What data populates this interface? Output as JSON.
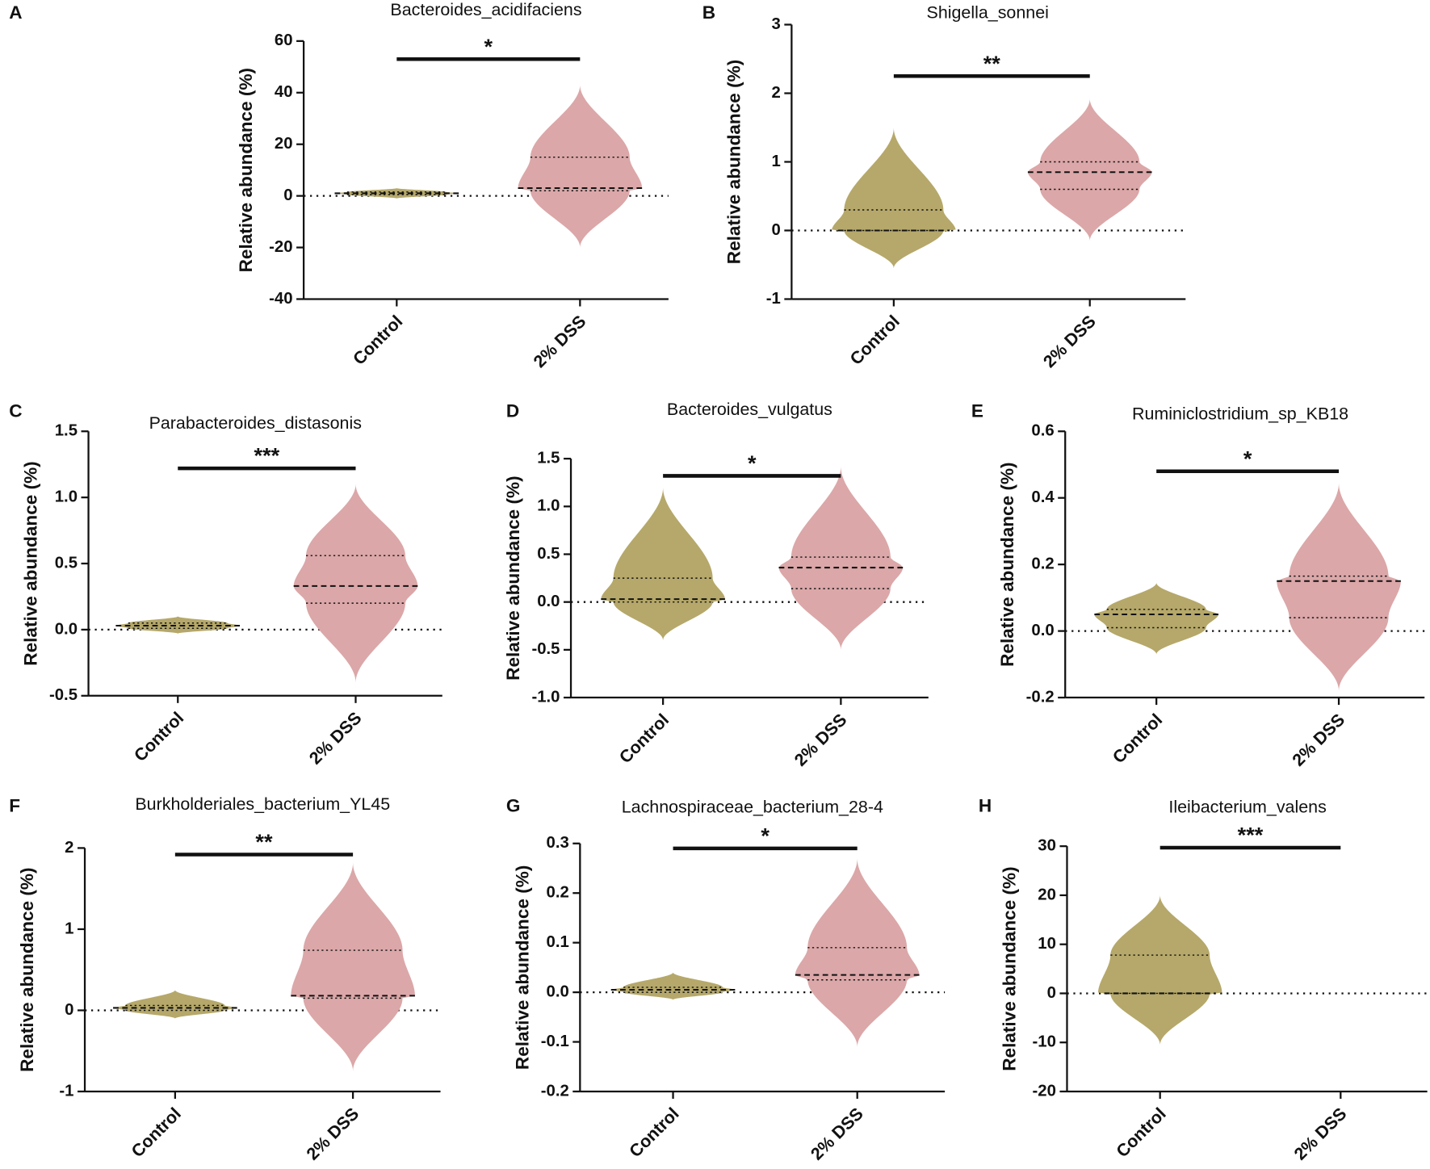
{
  "chart_data": [
    {
      "type": "violin",
      "panel": "A",
      "title": "Bacteroides_acidifaciens",
      "y_label": "Relative abundance (%)",
      "categories": [
        "Control",
        "2% DSS"
      ],
      "violins": [
        {
          "color": "#b5a86a",
          "min": -1,
          "q1": 0.5,
          "median": 1,
          "q3": 1.5,
          "max": 3
        },
        {
          "color": "#dba7a8",
          "min": -20,
          "q1": 2,
          "median": 3,
          "q3": 15,
          "max": 43
        }
      ],
      "ylim": [
        -40,
        60
      ],
      "yticks": [
        -40,
        -20,
        0,
        20,
        40,
        60
      ],
      "reference_line": 0,
      "bracket": {
        "y": 53,
        "label": "*"
      }
    },
    {
      "type": "violin",
      "panel": "B",
      "title": "Shigella_sonnei",
      "y_label": "Relative abundance (%)",
      "categories": [
        "Control",
        "2% DSS"
      ],
      "violins": [
        {
          "color": "#b5a86a",
          "min": -0.55,
          "q1": 0,
          "median": 0,
          "q3": 0.3,
          "max": 1.5
        },
        {
          "color": "#dba7a8",
          "min": -0.15,
          "q1": 0.6,
          "median": 0.85,
          "q3": 1.0,
          "max": 1.92
        }
      ],
      "ylim": [
        -1,
        3
      ],
      "yticks": [
        -1,
        0,
        1,
        2,
        3
      ],
      "reference_line": 0,
      "bracket": {
        "y": 2.25,
        "label": "**"
      }
    },
    {
      "type": "violin",
      "panel": "C",
      "title": "Parabacteroides_distasonis",
      "y_label": "Relative abundance (%)",
      "categories": [
        "Control",
        "2% DSS"
      ],
      "violins": [
        {
          "color": "#b5a86a",
          "min": -0.03,
          "q1": 0.01,
          "median": 0.03,
          "q3": 0.05,
          "max": 0.1
        },
        {
          "color": "#dba7a8",
          "min": -0.4,
          "q1": 0.2,
          "median": 0.33,
          "q3": 0.56,
          "max": 1.1
        }
      ],
      "ylim": [
        -0.5,
        1.5
      ],
      "yticks": [
        -0.5,
        {
          "value": 0,
          "label": "0.0"
        },
        0.5,
        {
          "value": 1,
          "label": "1.0"
        },
        1.5
      ],
      "reference_line": 0,
      "bracket": {
        "y": 1.22,
        "label": "***"
      }
    },
    {
      "type": "violin",
      "panel": "D",
      "title": "Bacteroides_vulgatus",
      "y_label": "Relative abundance (%)",
      "categories": [
        "Control",
        "2% DSS"
      ],
      "violins": [
        {
          "color": "#b5a86a",
          "min": -0.4,
          "q1": 0.0,
          "median": 0.03,
          "q3": 0.25,
          "max": 1.2
        },
        {
          "color": "#dba7a8",
          "min": -0.5,
          "q1": 0.14,
          "median": 0.36,
          "q3": 0.47,
          "max": 1.42
        }
      ],
      "ylim": [
        -1,
        1.5
      ],
      "yticks": [
        {
          "value": -1,
          "label": "-1.0"
        },
        -0.5,
        {
          "value": 0,
          "label": "0.0"
        },
        0.5,
        {
          "value": 1,
          "label": "1.0"
        },
        1.5
      ],
      "reference_line": 0,
      "bracket": {
        "y": 1.32,
        "label": "*"
      }
    },
    {
      "type": "violin",
      "panel": "E",
      "title": "Ruminiclostridium_sp_KB18",
      "y_label": "Relative abundance (%)",
      "categories": [
        "Control",
        "2% DSS"
      ],
      "violins": [
        {
          "color": "#b5a86a",
          "min": -0.07,
          "q1": 0.01,
          "median": 0.05,
          "q3": 0.065,
          "max": 0.145
        },
        {
          "color": "#dba7a8",
          "min": -0.18,
          "q1": 0.04,
          "median": 0.15,
          "q3": 0.165,
          "max": 0.445
        }
      ],
      "ylim": [
        -0.2,
        0.6
      ],
      "yticks": [
        -0.2,
        {
          "value": 0,
          "label": "0.0"
        },
        0.2,
        0.4,
        0.6
      ],
      "reference_line": 0,
      "bracket": {
        "y": 0.48,
        "label": "*"
      }
    },
    {
      "type": "violin",
      "panel": "F",
      "title": "Burkholderiales_bacterium_YL45",
      "y_label": "Relative abundance (%)",
      "categories": [
        "Control",
        "2% DSS"
      ],
      "violins": [
        {
          "color": "#b5a86a",
          "min": -0.1,
          "q1": 0.0,
          "median": 0.03,
          "q3": 0.06,
          "max": 0.25
        },
        {
          "color": "#dba7a8",
          "min": -0.75,
          "q1": 0.15,
          "median": 0.18,
          "q3": 0.74,
          "max": 1.82
        }
      ],
      "ylim": [
        -1,
        2
      ],
      "yticks": [
        -1,
        0,
        1,
        2
      ],
      "reference_line": 0,
      "bracket": {
        "y": 1.92,
        "label": "**"
      }
    },
    {
      "type": "violin",
      "panel": "G",
      "title": "Lachnospiraceae_bacterium_28-4",
      "y_label": "Relative abundance (%)",
      "categories": [
        "Control",
        "2% DSS"
      ],
      "violins": [
        {
          "color": "#b5a86a",
          "min": -0.015,
          "q1": 0.0,
          "median": 0.005,
          "q3": 0.01,
          "max": 0.04
        },
        {
          "color": "#dba7a8",
          "min": -0.11,
          "q1": 0.025,
          "median": 0.035,
          "q3": 0.09,
          "max": 0.27
        }
      ],
      "ylim": [
        -0.2,
        0.3
      ],
      "yticks": [
        -0.2,
        -0.1,
        {
          "value": 0,
          "label": "0.0"
        },
        0.1,
        0.2,
        0.3
      ],
      "reference_line": 0,
      "bracket": {
        "y": 0.29,
        "label": "*"
      }
    },
    {
      "type": "violin",
      "panel": "H",
      "title": "Ileibacterium_valens",
      "y_label": "Relative abundance (%)",
      "categories": [
        "Control",
        "2% DSS"
      ],
      "violins": [
        {
          "color": "#b5a86a",
          "min": -10.5,
          "q1": 0,
          "median": 0,
          "q3": 7.8,
          "max": 20
        },
        {
          "color": "#dba7a8",
          "min": null,
          "q1": null,
          "median": null,
          "q3": null,
          "max": null
        }
      ],
      "ylim": [
        -20,
        30
      ],
      "yticks": [
        -20,
        -10,
        0,
        10,
        20,
        30
      ],
      "reference_line": 0,
      "bracket": {
        "y": 29.7,
        "label": "***"
      }
    }
  ]
}
